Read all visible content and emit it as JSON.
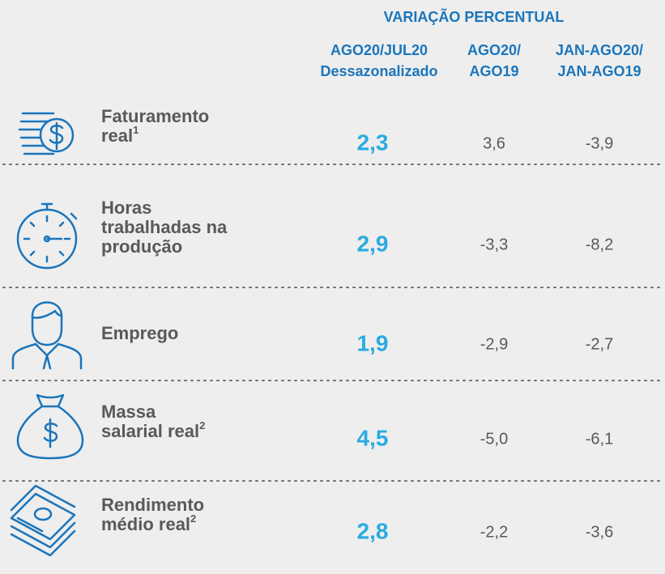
{
  "header": {
    "group": "VARIAÇÃO PERCENTUAL",
    "columns": [
      [
        "AGO20/JUL20",
        "Dessazonalizado"
      ],
      [
        "AGO20/",
        "AGO19"
      ],
      [
        "JAN-AGO20/",
        "JAN-AGO19"
      ]
    ]
  },
  "rows": [
    {
      "label": [
        "Faturamento",
        "real"
      ],
      "note": "1",
      "values": [
        "2,3",
        "3,6",
        "-3,9"
      ]
    },
    {
      "label": [
        "Horas",
        "trabalhadas na",
        "produção"
      ],
      "values": [
        "2,9",
        "-3,3",
        "-8,2"
      ]
    },
    {
      "label": [
        "Emprego"
      ],
      "values": [
        "1,9",
        "-2,9",
        "-2,7"
      ]
    },
    {
      "label": [
        "Massa",
        "salarial real"
      ],
      "note": "2",
      "values": [
        "4,5",
        "-5,0",
        "-6,1"
      ]
    },
    {
      "label": [
        "Rendimento",
        "médio real"
      ],
      "note": "2",
      "values": [
        "2,8",
        "-2,2",
        "-3,6"
      ]
    }
  ]
}
